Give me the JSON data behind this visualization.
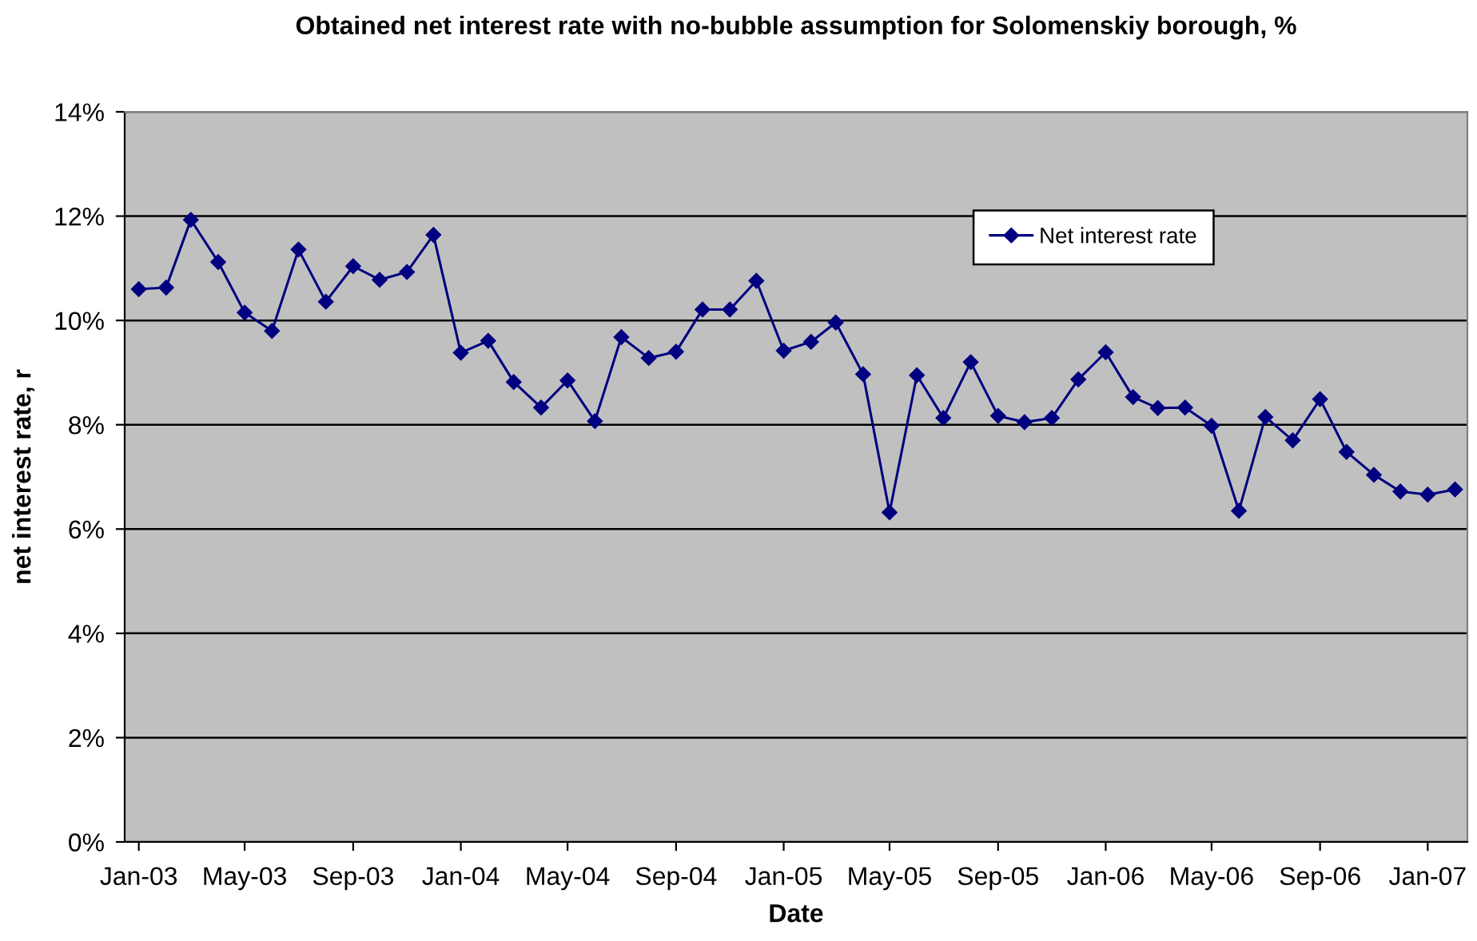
{
  "chart_data": {
    "type": "line",
    "title": "Obtained net interest rate with no-bubble assumption for Solomenskiy borough, %",
    "xlabel": "Date",
    "ylabel": "net interest rate, r",
    "x": [
      "2003-01",
      "2003-02",
      "2003-03",
      "2003-04",
      "2003-05",
      "2003-06",
      "2003-07",
      "2003-08",
      "2003-09",
      "2003-10",
      "2003-11",
      "2003-12",
      "2004-01",
      "2004-02",
      "2004-03",
      "2004-04",
      "2004-05",
      "2004-06",
      "2004-07",
      "2004-08",
      "2004-09",
      "2004-10",
      "2004-11",
      "2004-12",
      "2005-01",
      "2005-02",
      "2005-03",
      "2005-04",
      "2005-05",
      "2005-06",
      "2005-07",
      "2005-08",
      "2005-09",
      "2005-10",
      "2005-11",
      "2005-12",
      "2006-01",
      "2006-02",
      "2006-03",
      "2006-04",
      "2006-05",
      "2006-06",
      "2006-07",
      "2006-08",
      "2006-09",
      "2006-10",
      "2006-11",
      "2006-12",
      "2007-01",
      "2007-02"
    ],
    "series": [
      {
        "name": "Net interest rate",
        "color": "#000080",
        "values": [
          10.6,
          10.63,
          11.93,
          11.12,
          10.15,
          9.8,
          11.36,
          10.36,
          11.04,
          10.78,
          10.93,
          11.64,
          9.38,
          9.61,
          8.82,
          8.33,
          8.85,
          8.07,
          9.68,
          9.28,
          9.4,
          10.21,
          10.21,
          10.76,
          9.42,
          9.59,
          9.96,
          8.97,
          6.32,
          8.95,
          8.13,
          9.2,
          8.17,
          8.05,
          8.13,
          8.87,
          9.39,
          8.53,
          8.32,
          8.33,
          7.98,
          6.35,
          8.15,
          7.7,
          8.49,
          7.48,
          7.04,
          6.72,
          6.66,
          6.76
        ]
      }
    ],
    "xlim": [
      "2002-12-16",
      "2007-02-15"
    ],
    "xticks": [
      {
        "value": "2003-01",
        "label": "Jan-03"
      },
      {
        "value": "2003-05",
        "label": "May-03"
      },
      {
        "value": "2003-09",
        "label": "Sep-03"
      },
      {
        "value": "2004-01",
        "label": "Jan-04"
      },
      {
        "value": "2004-05",
        "label": "May-04"
      },
      {
        "value": "2004-09",
        "label": "Sep-04"
      },
      {
        "value": "2005-01",
        "label": "Jan-05"
      },
      {
        "value": "2005-05",
        "label": "May-05"
      },
      {
        "value": "2005-09",
        "label": "Sep-05"
      },
      {
        "value": "2006-01",
        "label": "Jan-06"
      },
      {
        "value": "2006-05",
        "label": "May-06"
      },
      {
        "value": "2006-09",
        "label": "Sep-06"
      },
      {
        "value": "2007-01",
        "label": "Jan-07"
      }
    ],
    "ylim": [
      0,
      14
    ],
    "yticks": [
      {
        "value": 0,
        "label": "0%"
      },
      {
        "value": 2,
        "label": "2%"
      },
      {
        "value": 4,
        "label": "4%"
      },
      {
        "value": 6,
        "label": "6%"
      },
      {
        "value": 8,
        "label": "8%"
      },
      {
        "value": 10,
        "label": "10%"
      },
      {
        "value": 12,
        "label": "12%"
      },
      {
        "value": 14,
        "label": "14%"
      }
    ],
    "grid": "y",
    "legend": "top right",
    "marker": "diamond",
    "line_style": "solid"
  }
}
